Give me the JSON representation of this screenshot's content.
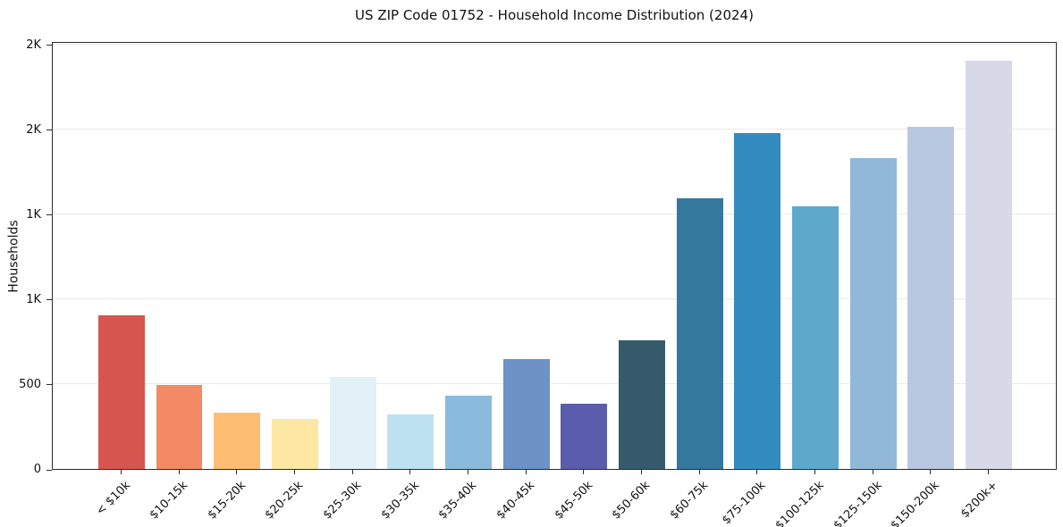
{
  "chart_data": {
    "type": "bar",
    "title": "US ZIP Code 01752 - Household Income Distribution (2024)",
    "xlabel": "",
    "ylabel": "Households",
    "categories": [
      "< $10k",
      "$10-15k",
      "$15-20k",
      "$20-25k",
      "$25-30k",
      "$30-35k",
      "$35-40k",
      "$40-45k",
      "$45-50k",
      "$50-60k",
      "$60-75k",
      "$75-100k",
      "$100-125k",
      "$125-150k",
      "$150-200k",
      "$200k+"
    ],
    "values": [
      910,
      500,
      335,
      300,
      545,
      325,
      435,
      650,
      390,
      765,
      1600,
      1985,
      1550,
      1835,
      2020,
      2410
    ],
    "bar_colors": [
      "#d6564f",
      "#f18a65",
      "#fdbd73",
      "#fce8a2",
      "#e2f0f7",
      "#bde1f0",
      "#8abbdc",
      "#6c92c6",
      "#5a5dac",
      "#355a6c",
      "#35789e",
      "#338bc0",
      "#5ea8cc",
      "#92b8d9",
      "#b8c8e0",
      "#d7d9e8"
    ],
    "ylim": [
      0,
      2520
    ],
    "yticks": [
      {
        "value": 0,
        "label": "0"
      },
      {
        "value": 500,
        "label": "500"
      },
      {
        "value": 1000,
        "label": "1K"
      },
      {
        "value": 1500,
        "label": "1K"
      },
      {
        "value": 2000,
        "label": "2K"
      },
      {
        "value": 2500,
        "label": "2K"
      }
    ],
    "grid": "horizontal",
    "legend": "none",
    "colors": {
      "background": "#ffffff",
      "spine": "#2b2b2b",
      "gridline": "#eaeaee",
      "text": "#111111"
    }
  }
}
